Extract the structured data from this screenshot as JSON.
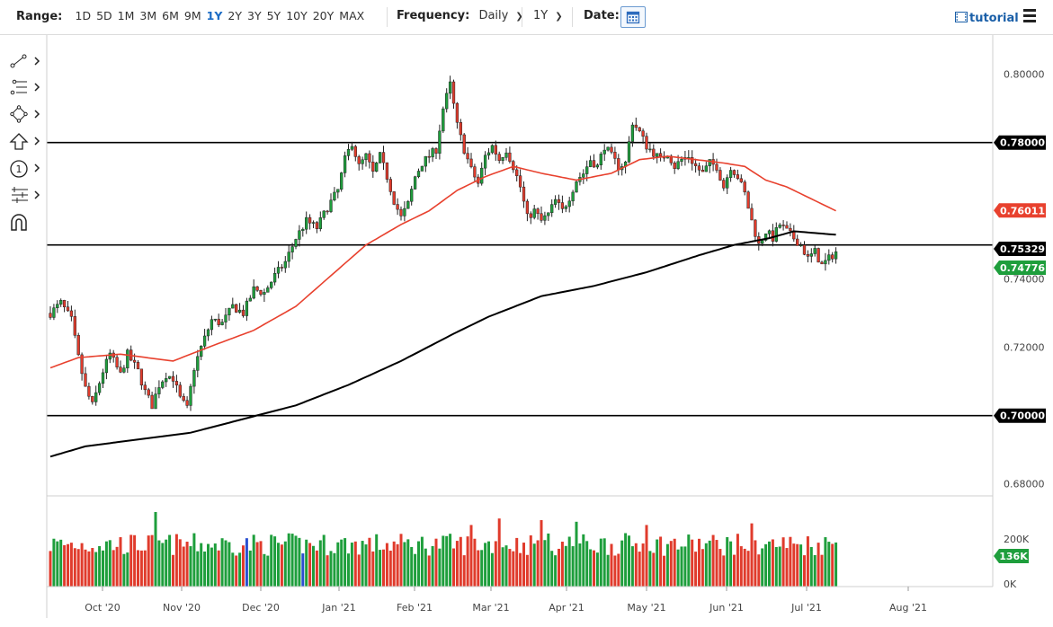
{
  "toolbar": {
    "range_label": "Range:",
    "ranges": [
      "1D",
      "5D",
      "1M",
      "3M",
      "6M",
      "9M",
      "1Y",
      "2Y",
      "3Y",
      "5Y",
      "10Y",
      "20Y",
      "MAX"
    ],
    "active_range": "1Y",
    "frequency_label": "Frequency:",
    "frequency_value": "Daily",
    "period_value": "1Y",
    "date_label": "Date:",
    "tutorial_label": "tutorial",
    "calendar_icon": "calendar-icon",
    "menu_icon": "hamburger-menu-icon"
  },
  "tools": [
    {
      "name": "trendline-tool",
      "icon": "line-draw-icon"
    },
    {
      "name": "fibonacci-tool",
      "icon": "fib-levels-icon"
    },
    {
      "name": "shape-tool",
      "icon": "shape-icon"
    },
    {
      "name": "arrow-tool",
      "icon": "arrow-up-icon"
    },
    {
      "name": "annotation-tool",
      "icon": "numbered-circle-icon",
      "label": "1"
    },
    {
      "name": "indicator-tool",
      "icon": "settings-lines-icon"
    },
    {
      "name": "magnet-tool",
      "icon": "magnet-icon"
    }
  ],
  "colors": {
    "up": "#1e9e3c",
    "down": "#e03b2c",
    "ma_fast": "#e8412e",
    "ma_slow": "#000000",
    "last_price": "#1e9e3c",
    "vol_highlight": "#2a4fd0"
  },
  "chart_data": {
    "type": "candlestick",
    "instrument_note": "",
    "y_axis_ticks": [
      "0.80000",
      "0.78000",
      "0.76000",
      "0.74000",
      "0.72000",
      "0.70000",
      "0.68000"
    ],
    "ylim": [
      0.6765,
      0.8115
    ],
    "x_axis_ticks": [
      "Oct '20",
      "Nov '20",
      "Dec '20",
      "Jan '21",
      "Feb '21",
      "Mar '21",
      "Apr '21",
      "May '21",
      "Jun '21",
      "Jul '21",
      "Aug '21"
    ],
    "horizontal_levels": [
      0.78,
      0.75,
      0.7
    ],
    "price_labels": [
      {
        "value": "0.78000",
        "kind": "level"
      },
      {
        "value": "0.76011",
        "kind": "ma_fast"
      },
      {
        "value": "0.75329",
        "kind": "ma_slow"
      },
      {
        "value": "0.74776",
        "kind": "last"
      },
      {
        "value": "0.70000",
        "kind": "level"
      }
    ],
    "volume_axis_ticks": [
      "200K",
      "0K"
    ],
    "volume_last_label": "136K",
    "close_anchors": [
      [
        0,
        0.73
      ],
      [
        3,
        0.733
      ],
      [
        6,
        0.728
      ],
      [
        8,
        0.717
      ],
      [
        10,
        0.708
      ],
      [
        12,
        0.703
      ],
      [
        15,
        0.713
      ],
      [
        17,
        0.718
      ],
      [
        20,
        0.712
      ],
      [
        22,
        0.718
      ],
      [
        25,
        0.713
      ],
      [
        27,
        0.707
      ],
      [
        29,
        0.703
      ],
      [
        31,
        0.709
      ],
      [
        33,
        0.712
      ],
      [
        35,
        0.711
      ],
      [
        37,
        0.705
      ],
      [
        39,
        0.702
      ],
      [
        41,
        0.714
      ],
      [
        43,
        0.72
      ],
      [
        46,
        0.728
      ],
      [
        49,
        0.727
      ],
      [
        52,
        0.732
      ],
      [
        55,
        0.73
      ],
      [
        58,
        0.737
      ],
      [
        61,
        0.736
      ],
      [
        64,
        0.741
      ],
      [
        67,
        0.745
      ],
      [
        70,
        0.752
      ],
      [
        73,
        0.757
      ],
      [
        76,
        0.755
      ],
      [
        79,
        0.761
      ],
      [
        82,
        0.766
      ],
      [
        84,
        0.775
      ],
      [
        86,
        0.78
      ],
      [
        88,
        0.773
      ],
      [
        90,
        0.776
      ],
      [
        92,
        0.771
      ],
      [
        94,
        0.776
      ],
      [
        96,
        0.77
      ],
      [
        98,
        0.763
      ],
      [
        100,
        0.758
      ],
      [
        102,
        0.762
      ],
      [
        104,
        0.77
      ],
      [
        106,
        0.774
      ],
      [
        108,
        0.776
      ],
      [
        110,
        0.778
      ],
      [
        112,
        0.79
      ],
      [
        114,
        0.797
      ],
      [
        116,
        0.785
      ],
      [
        118,
        0.778
      ],
      [
        120,
        0.772
      ],
      [
        122,
        0.768
      ],
      [
        124,
        0.776
      ],
      [
        126,
        0.779
      ],
      [
        128,
        0.775
      ],
      [
        130,
        0.778
      ],
      [
        132,
        0.773
      ],
      [
        134,
        0.767
      ],
      [
        136,
        0.758
      ],
      [
        138,
        0.76
      ],
      [
        140,
        0.757
      ],
      [
        142,
        0.759
      ],
      [
        144,
        0.763
      ],
      [
        146,
        0.76
      ],
      [
        148,
        0.764
      ],
      [
        150,
        0.769
      ],
      [
        152,
        0.771
      ],
      [
        154,
        0.775
      ],
      [
        156,
        0.773
      ],
      [
        158,
        0.779
      ],
      [
        160,
        0.776
      ],
      [
        162,
        0.773
      ],
      [
        164,
        0.774
      ],
      [
        166,
        0.786
      ],
      [
        168,
        0.783
      ],
      [
        170,
        0.779
      ],
      [
        172,
        0.777
      ],
      [
        174,
        0.775
      ],
      [
        176,
        0.777
      ],
      [
        178,
        0.773
      ],
      [
        180,
        0.775
      ],
      [
        182,
        0.776
      ],
      [
        184,
        0.773
      ],
      [
        186,
        0.771
      ],
      [
        188,
        0.774
      ],
      [
        190,
        0.773
      ],
      [
        192,
        0.767
      ],
      [
        194,
        0.773
      ],
      [
        196,
        0.77
      ],
      [
        198,
        0.765
      ],
      [
        200,
        0.757
      ],
      [
        202,
        0.75
      ],
      [
        204,
        0.754
      ],
      [
        206,
        0.752
      ],
      [
        208,
        0.756
      ],
      [
        210,
        0.754
      ],
      [
        212,
        0.752
      ],
      [
        214,
        0.75
      ],
      [
        216,
        0.746
      ],
      [
        218,
        0.748
      ],
      [
        220,
        0.744
      ],
      [
        222,
        0.746
      ],
      [
        224,
        0.748
      ]
    ],
    "ma_fast_anchors": [
      [
        0,
        0.714
      ],
      [
        8,
        0.717
      ],
      [
        20,
        0.718
      ],
      [
        35,
        0.716
      ],
      [
        45,
        0.72
      ],
      [
        58,
        0.725
      ],
      [
        70,
        0.732
      ],
      [
        80,
        0.741
      ],
      [
        90,
        0.75
      ],
      [
        100,
        0.756
      ],
      [
        108,
        0.76
      ],
      [
        116,
        0.766
      ],
      [
        124,
        0.77
      ],
      [
        132,
        0.773
      ],
      [
        140,
        0.771
      ],
      [
        150,
        0.769
      ],
      [
        160,
        0.771
      ],
      [
        168,
        0.775
      ],
      [
        176,
        0.776
      ],
      [
        184,
        0.775
      ],
      [
        192,
        0.774
      ],
      [
        198,
        0.773
      ],
      [
        204,
        0.769
      ],
      [
        210,
        0.767
      ],
      [
        216,
        0.764
      ],
      [
        224,
        0.76
      ]
    ],
    "ma_slow_anchors": [
      [
        0,
        0.688
      ],
      [
        10,
        0.691
      ],
      [
        25,
        0.693
      ],
      [
        40,
        0.695
      ],
      [
        55,
        0.699
      ],
      [
        70,
        0.703
      ],
      [
        85,
        0.709
      ],
      [
        100,
        0.716
      ],
      [
        115,
        0.724
      ],
      [
        125,
        0.729
      ],
      [
        140,
        0.735
      ],
      [
        155,
        0.738
      ],
      [
        170,
        0.742
      ],
      [
        185,
        0.747
      ],
      [
        195,
        0.75
      ],
      [
        205,
        0.752
      ],
      [
        212,
        0.754
      ],
      [
        224,
        0.753
      ]
    ],
    "volume_levels_k": "approx 100–230K daily, last 136K"
  }
}
